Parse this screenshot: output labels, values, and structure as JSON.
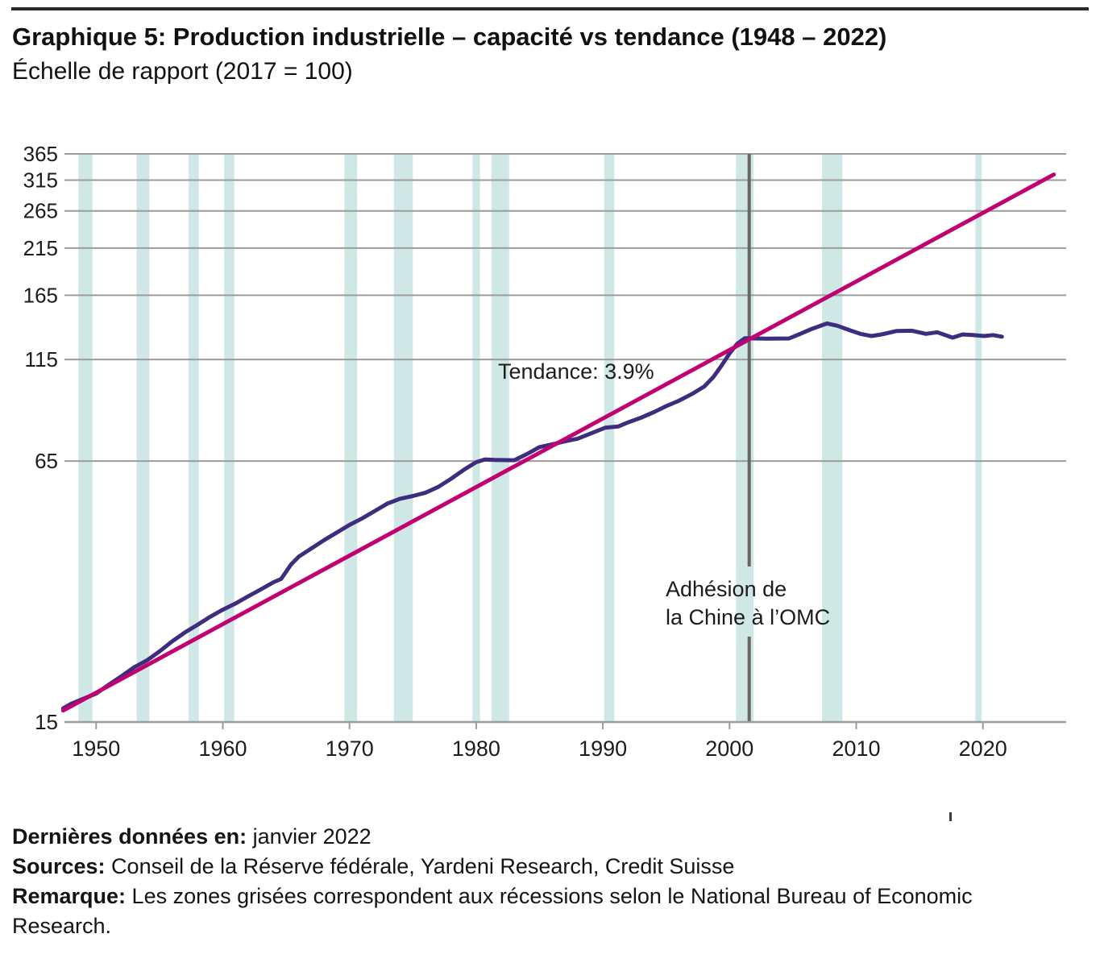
{
  "header": {
    "title": "Graphique 5: Production industrielle – capacité vs tendance (1948 – 2022)",
    "subtitle": "Échelle de rapport (2017 = 100)"
  },
  "chart_data": {
    "type": "line",
    "title": "Production industrielle – capacité vs tendance (1948 – 2022)",
    "subtitle": "Échelle de rapport (2017 = 100)",
    "xlabel": "",
    "ylabel": "",
    "y_axis": {
      "scale": "log",
      "min": 15,
      "max": 365,
      "gridline_values": [
        365,
        315,
        265,
        215,
        165,
        115,
        65
      ],
      "tick_labels": [
        365,
        315,
        265,
        215,
        165,
        115,
        65,
        15
      ]
    },
    "x_axis": {
      "min": 1947.4,
      "max": 2026.6,
      "ticks": [
        1950,
        1960,
        1970,
        1980,
        1990,
        2000,
        2010,
        2020
      ]
    },
    "series": [
      {
        "name": "capacite",
        "label": "Production industrielle – capacité",
        "color": "#3e2c7e",
        "points": [
          [
            1947.4,
            16.2
          ],
          [
            1948,
            16.6
          ],
          [
            1949,
            17.1
          ],
          [
            1950,
            17.6
          ],
          [
            1951,
            18.5
          ],
          [
            1952,
            19.4
          ],
          [
            1953,
            20.4
          ],
          [
            1954,
            21.2
          ],
          [
            1955,
            22.3
          ],
          [
            1956,
            23.6
          ],
          [
            1957,
            24.8
          ],
          [
            1958,
            25.9
          ],
          [
            1959,
            27.1
          ],
          [
            1960,
            28.2
          ],
          [
            1961,
            29.2
          ],
          [
            1962,
            30.4
          ],
          [
            1963,
            31.6
          ],
          [
            1964,
            32.9
          ],
          [
            1964.6,
            33.5
          ],
          [
            1965.4,
            36.4
          ],
          [
            1966,
            38.0
          ],
          [
            1967,
            39.8
          ],
          [
            1968,
            41.7
          ],
          [
            1969,
            43.5
          ],
          [
            1970,
            45.4
          ],
          [
            1971,
            47.1
          ],
          [
            1972,
            49.1
          ],
          [
            1973,
            51.2
          ],
          [
            1974,
            52.6
          ],
          [
            1975,
            53.4
          ],
          [
            1976,
            54.4
          ],
          [
            1977,
            56.2
          ],
          [
            1978,
            58.8
          ],
          [
            1979,
            61.8
          ],
          [
            1980,
            64.6
          ],
          [
            1980.7,
            65.6
          ],
          [
            1981.5,
            65.4
          ],
          [
            1983,
            65.3
          ],
          [
            1984,
            67.6
          ],
          [
            1985,
            70.3
          ],
          [
            1986,
            71.4
          ],
          [
            1987,
            72.6
          ],
          [
            1988,
            73.7
          ],
          [
            1989,
            75.8
          ],
          [
            1990.2,
            78.4
          ],
          [
            1991.2,
            78.9
          ],
          [
            1992,
            80.8
          ],
          [
            1993,
            82.9
          ],
          [
            1994,
            85.5
          ],
          [
            1995,
            88.5
          ],
          [
            1996,
            91.2
          ],
          [
            1997,
            94.6
          ],
          [
            1998,
            98.8
          ],
          [
            1998.7,
            104
          ],
          [
            1999.4,
            111.5
          ],
          [
            2000,
            119
          ],
          [
            2000.6,
            125.5
          ],
          [
            2001.2,
            129.6
          ],
          [
            2002,
            129.4
          ],
          [
            2003,
            129.3
          ],
          [
            2004.7,
            129.4
          ],
          [
            2005.5,
            132.5
          ],
          [
            2006.5,
            136.6
          ],
          [
            2007.7,
            140.8
          ],
          [
            2008.5,
            139
          ],
          [
            2009.5,
            135.5
          ],
          [
            2010.4,
            132.6
          ],
          [
            2011.2,
            131.2
          ],
          [
            2012,
            132.4
          ],
          [
            2013.2,
            135
          ],
          [
            2014.4,
            135.2
          ],
          [
            2015.5,
            132.8
          ],
          [
            2016.4,
            134
          ],
          [
            2017.6,
            130
          ],
          [
            2018.4,
            132.4
          ],
          [
            2019.2,
            132
          ],
          [
            2020.1,
            131.2
          ],
          [
            2020.8,
            131.9
          ],
          [
            2021.5,
            130.7
          ]
        ]
      },
      {
        "name": "tendance",
        "label": "Tendance 3.9%",
        "color": "#c10072",
        "points": [
          [
            1947.4,
            16.0
          ],
          [
            2025.6,
            325
          ]
        ]
      }
    ],
    "recessions": [
      [
        1948.6,
        1949.7
      ],
      [
        1953.2,
        1954.2
      ],
      [
        1957.3,
        1958.1
      ],
      [
        1960.1,
        1960.9
      ],
      [
        1969.6,
        1970.6
      ],
      [
        1973.5,
        1975.0
      ],
      [
        1979.7,
        1980.3
      ],
      [
        1981.2,
        1982.6
      ],
      [
        1990.1,
        1990.9
      ],
      [
        2000.5,
        2001.9
      ],
      [
        2007.3,
        2008.9
      ],
      [
        2019.4,
        2019.9
      ]
    ],
    "annotations": {
      "trend_label": "Tendance: 3.9%",
      "wto_label_line1": "Adhésion de",
      "wto_label_line2": "la Chine à l’OMC",
      "wto_event_year": 2001.55
    },
    "colors": {
      "recession_band": "#cfe7e5",
      "gridline": "#9c9c9c",
      "axis": "#9c9c9c",
      "wto_line": "#666666",
      "tick_text": "#1c1c1c"
    },
    "legend": "none",
    "grid": "horizontal-only"
  },
  "footer": {
    "lines": [
      {
        "label": "Dernières données en:",
        "text": " janvier 2022"
      },
      {
        "label": "Sources:",
        "text": " Conseil de la Réserve fédérale, Yardeni Research, Credit Suisse"
      },
      {
        "label": "Remarque:",
        "text": " Les zones grisées correspondent aux récessions selon le National Bureau of Economic Research."
      }
    ]
  }
}
